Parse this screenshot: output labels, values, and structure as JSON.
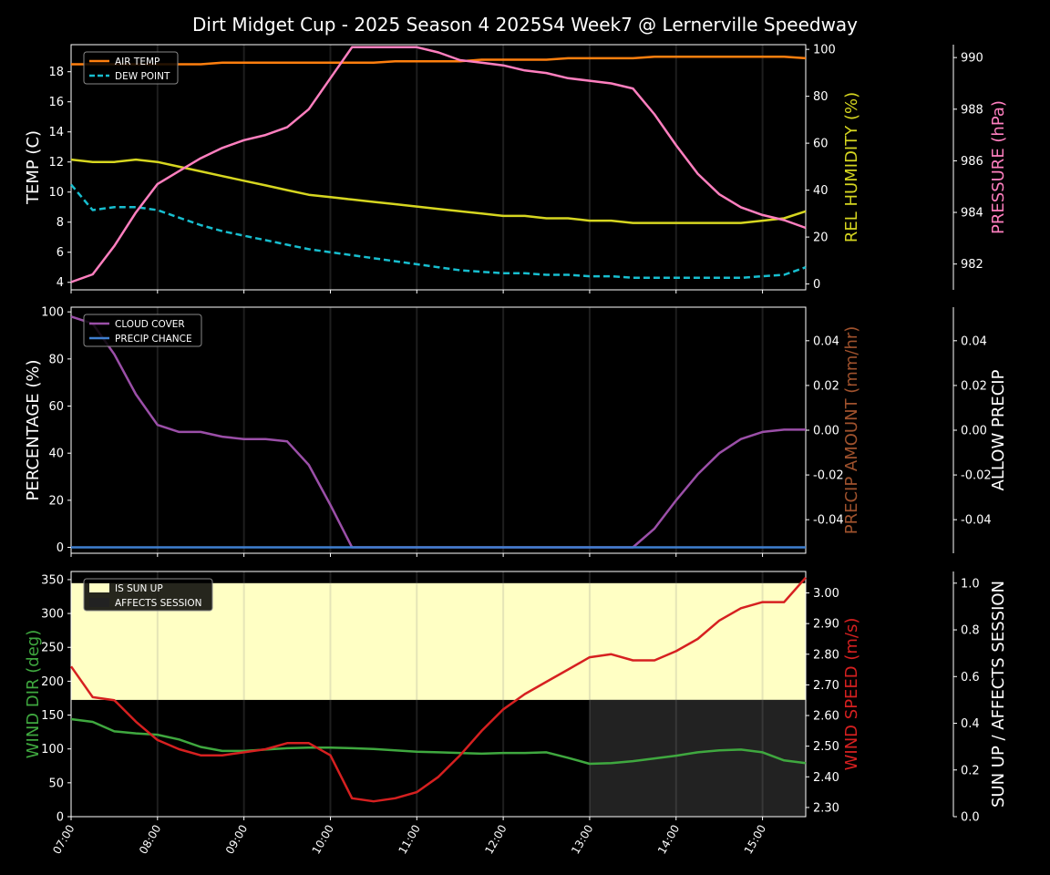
{
  "title": "Dirt Midget Cup - 2025 Season 4 2025S4 Week7 @ Lernerville Speedway",
  "colors": {
    "air_temp": "#ff7f0e",
    "dew_point": "#17becf",
    "humidity": "#d6d620",
    "pressure": "#ff7fbf",
    "cloud": "#9b4fa8",
    "precip_chance": "#3f7fd0",
    "precip_amount_label": "#a0522d",
    "wind_dir": "#3fa83f",
    "wind_speed": "#d62020",
    "sun_up": "#ffffc4",
    "affects": "#222222"
  },
  "chart_data": [
    {
      "type": "line",
      "name_key": "panel-temperature",
      "x": [
        "07:00",
        "07:15",
        "07:30",
        "07:45",
        "08:00",
        "08:15",
        "08:30",
        "08:45",
        "09:00",
        "09:15",
        "09:30",
        "09:45",
        "10:00",
        "10:15",
        "10:30",
        "10:45",
        "11:00",
        "11:15",
        "11:30",
        "11:45",
        "12:00",
        "12:15",
        "12:30",
        "12:45",
        "13:00",
        "13:15",
        "13:30",
        "13:45",
        "14:00",
        "14:15",
        "14:30",
        "14:45",
        "15:00",
        "15:15",
        "15:30"
      ],
      "ylabel": "TEMP (C)",
      "ylim": [
        3.5,
        19.8
      ],
      "yticks": [
        4,
        6,
        8,
        10,
        12,
        14,
        16,
        18
      ],
      "y2label": "REL HUMIDITY (%)",
      "y2lim": [
        -2.5,
        102
      ],
      "y2ticks": [
        0,
        20,
        40,
        60,
        80,
        100
      ],
      "y3label": "PRESSURE (hPa)",
      "y3lim": [
        981,
        990.5
      ],
      "y3ticks": [
        982,
        984,
        986,
        988,
        990
      ],
      "legend": [
        "AIR TEMP",
        "DEW POINT"
      ],
      "series": [
        {
          "name": "AIR TEMP",
          "axis": "y",
          "values": [
            18.5,
            18.5,
            18.5,
            18.5,
            18.5,
            18.5,
            18.5,
            18.6,
            18.6,
            18.6,
            18.6,
            18.6,
            18.6,
            18.6,
            18.6,
            18.7,
            18.7,
            18.7,
            18.7,
            18.8,
            18.8,
            18.8,
            18.8,
            18.9,
            18.9,
            18.9,
            18.9,
            19.0,
            19.0,
            19.0,
            19.0,
            19.0,
            19.0,
            19.0,
            18.9
          ]
        },
        {
          "name": "DEW POINT",
          "axis": "y",
          "values": [
            10.5,
            8.8,
            9.0,
            9.0,
            8.8,
            8.3,
            7.8,
            7.4,
            7.1,
            6.8,
            6.5,
            6.2,
            6.0,
            5.8,
            5.6,
            5.4,
            5.2,
            5.0,
            4.8,
            4.7,
            4.6,
            4.6,
            4.5,
            4.5,
            4.4,
            4.4,
            4.3,
            4.3,
            4.3,
            4.3,
            4.3,
            4.3,
            4.4,
            4.5,
            5.0
          ]
        },
        {
          "name": "REL HUMIDITY",
          "axis": "y2",
          "values": [
            53,
            52,
            52,
            53,
            52,
            50,
            48,
            46,
            44,
            42,
            40,
            38,
            37,
            36,
            35,
            34,
            33,
            32,
            31,
            30,
            29,
            29,
            28,
            28,
            27,
            27,
            26,
            26,
            26,
            26,
            26,
            26,
            27,
            28,
            31
          ]
        },
        {
          "name": "PRESSURE",
          "axis": "y3",
          "values": [
            981.3,
            981.6,
            982.7,
            984.0,
            985.1,
            985.6,
            986.1,
            986.5,
            986.8,
            987.0,
            987.3,
            988.0,
            989.2,
            990.4,
            990.4,
            990.4,
            990.4,
            990.2,
            989.9,
            989.8,
            989.7,
            989.5,
            989.4,
            989.2,
            989.1,
            989.0,
            988.8,
            987.8,
            986.6,
            985.5,
            984.7,
            984.2,
            983.9,
            983.7,
            983.4
          ]
        }
      ]
    },
    {
      "type": "line",
      "name_key": "panel-precip",
      "x": [
        "07:00",
        "07:15",
        "07:30",
        "07:45",
        "08:00",
        "08:15",
        "08:30",
        "08:45",
        "09:00",
        "09:15",
        "09:30",
        "09:45",
        "10:00",
        "10:15",
        "10:30",
        "10:45",
        "11:00",
        "11:15",
        "11:30",
        "11:45",
        "12:00",
        "12:15",
        "12:30",
        "12:45",
        "13:00",
        "13:15",
        "13:30",
        "13:45",
        "14:00",
        "14:15",
        "14:30",
        "14:45",
        "15:00",
        "15:15",
        "15:30"
      ],
      "ylabel": "PERCENTAGE (%)",
      "ylim": [
        -2.5,
        102
      ],
      "yticks": [
        0,
        20,
        40,
        60,
        80,
        100
      ],
      "y2label": "PRECIP AMOUNT (mm/hr)",
      "y2lim": [
        -0.055,
        0.055
      ],
      "y2ticks": [
        -0.04,
        -0.02,
        0.0,
        0.02,
        0.04
      ],
      "y3label": "ALLOW PRECIP",
      "y3lim": [
        -0.055,
        0.055
      ],
      "y3ticks": [
        -0.04,
        -0.02,
        0.0,
        0.02,
        0.04
      ],
      "legend": [
        "CLOUD COVER",
        "PRECIP CHANCE"
      ],
      "series": [
        {
          "name": "CLOUD COVER",
          "axis": "y",
          "values": [
            98,
            95,
            82,
            65,
            52,
            49,
            49,
            47,
            46,
            46,
            45,
            35,
            18,
            0,
            0,
            0,
            0,
            0,
            0,
            0,
            0,
            0,
            0,
            0,
            0,
            0,
            0,
            8,
            20,
            31,
            40,
            46,
            49,
            50,
            50
          ]
        },
        {
          "name": "PRECIP CHANCE",
          "axis": "y",
          "values": [
            0,
            0,
            0,
            0,
            0,
            0,
            0,
            0,
            0,
            0,
            0,
            0,
            0,
            0,
            0,
            0,
            0,
            0,
            0,
            0,
            0,
            0,
            0,
            0,
            0,
            0,
            0,
            0,
            0,
            0,
            0,
            0,
            0,
            0,
            0
          ]
        }
      ]
    },
    {
      "type": "line",
      "name_key": "panel-wind",
      "x": [
        "07:00",
        "07:15",
        "07:30",
        "07:45",
        "08:00",
        "08:15",
        "08:30",
        "08:45",
        "09:00",
        "09:15",
        "09:30",
        "09:45",
        "10:00",
        "10:15",
        "10:30",
        "10:45",
        "11:00",
        "11:15",
        "11:30",
        "11:45",
        "12:00",
        "12:15",
        "12:30",
        "12:45",
        "13:00",
        "13:15",
        "13:30",
        "13:45",
        "14:00",
        "14:15",
        "14:30",
        "14:45",
        "15:00",
        "15:15",
        "15:30"
      ],
      "xticks": [
        "07:00",
        "08:00",
        "09:00",
        "10:00",
        "11:00",
        "12:00",
        "13:00",
        "14:00",
        "15:00"
      ],
      "ylabel": "WIND DIR (deg)",
      "ylim": [
        0,
        362
      ],
      "yticks": [
        0,
        50,
        100,
        150,
        200,
        250,
        300,
        350
      ],
      "y2label": "WIND SPEED (m/s)",
      "y2lim": [
        2.27,
        3.07
      ],
      "y2ticks": [
        2.3,
        2.4,
        2.5,
        2.6,
        2.7,
        2.8,
        2.9,
        3.0
      ],
      "y3label": "SUN UP / AFFECTS SESSION",
      "y3lim": [
        0,
        1.05
      ],
      "y3ticks": [
        0.0,
        0.2,
        0.4,
        0.6,
        0.8,
        1.0
      ],
      "legend": [
        "IS SUN UP",
        "AFFECTS SESSION"
      ],
      "sun_up": {
        "start": "07:00",
        "end": "15:30",
        "value": 1.0
      },
      "affects_session": {
        "start": "13:00",
        "end": "15:30",
        "value": 0.5
      },
      "series": [
        {
          "name": "WIND DIR",
          "axis": "y",
          "values": [
            144,
            140,
            126,
            123,
            121,
            114,
            103,
            97,
            97,
            99,
            101,
            102,
            102,
            101,
            100,
            98,
            96,
            95,
            94,
            93,
            94,
            94,
            95,
            87,
            78,
            79,
            82,
            86,
            90,
            95,
            98,
            99,
            95,
            83,
            79
          ]
        },
        {
          "name": "WIND SPEED",
          "axis": "y2",
          "values": [
            2.76,
            2.66,
            2.65,
            2.58,
            2.52,
            2.49,
            2.47,
            2.47,
            2.48,
            2.49,
            2.51,
            2.51,
            2.47,
            2.33,
            2.32,
            2.33,
            2.35,
            2.4,
            2.47,
            2.55,
            2.62,
            2.67,
            2.71,
            2.75,
            2.79,
            2.8,
            2.78,
            2.78,
            2.81,
            2.85,
            2.91,
            2.95,
            2.97,
            2.97,
            3.05
          ]
        }
      ]
    }
  ]
}
